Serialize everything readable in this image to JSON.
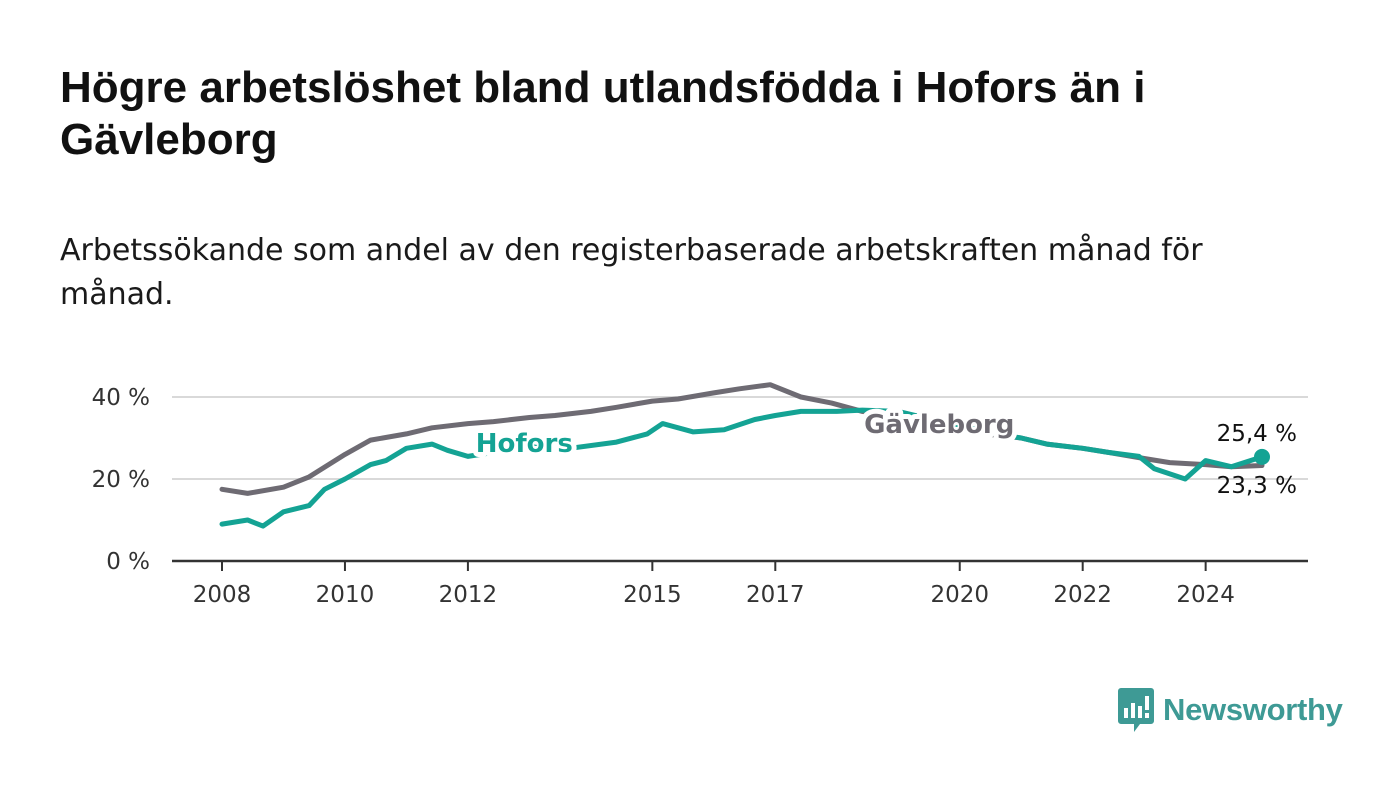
{
  "title": "Högre arbetslöshet bland utlandsfödda i Hofors än i Gävleborg",
  "subtitle": "Arbetssökande som andel av den registerbaserade arbetskraften månad för månad.",
  "brand": {
    "name": "Newsworthy",
    "color": "#3e9a95"
  },
  "colors": {
    "hofors": "#14a394",
    "gavleborg": "#6e6b73",
    "grid": "#d9d9d9",
    "axis": "#333333"
  },
  "chart_data": {
    "type": "line",
    "title": "Högre arbetslöshet bland utlandsfödda i Hofors än i Gävleborg",
    "subtitle": "Arbetssökande som andel av den registerbaserade arbetskraften månad för månad.",
    "xlabel": "",
    "ylabel": "",
    "xlim": [
      "2008-01",
      "2024-12"
    ],
    "ylim": [
      0,
      40
    ],
    "y_ticks": [
      0,
      20,
      40
    ],
    "y_tick_labels": [
      "0 %",
      "20 %",
      "40 %"
    ],
    "x_ticks": [
      "2008-01",
      "2010-01",
      "2012-01",
      "2015-01",
      "2017-01",
      "2020-01",
      "2022-01",
      "2024-01"
    ],
    "x_tick_labels": [
      "2008",
      "2010",
      "2012",
      "2015",
      "2017",
      "2020",
      "2022",
      "2024"
    ],
    "grid": true,
    "series": [
      {
        "name": "Hofors",
        "color": "#14a394",
        "label_position": "2012-12",
        "end_label": "25,4 %",
        "points": [
          [
            "2008-01",
            9.0
          ],
          [
            "2008-06",
            10.0
          ],
          [
            "2008-09",
            8.5
          ],
          [
            "2009-01",
            12.0
          ],
          [
            "2009-06",
            13.5
          ],
          [
            "2009-09",
            17.5
          ],
          [
            "2010-01",
            20.0
          ],
          [
            "2010-06",
            23.5
          ],
          [
            "2010-09",
            24.5
          ],
          [
            "2011-01",
            27.5
          ],
          [
            "2011-06",
            28.5
          ],
          [
            "2011-09",
            27.0
          ],
          [
            "2012-01",
            25.5
          ],
          [
            "2012-06",
            26.5
          ],
          [
            "2013-01",
            28.0
          ],
          [
            "2013-06",
            27.0
          ],
          [
            "2014-06",
            29.0
          ],
          [
            "2014-12",
            31.0
          ],
          [
            "2015-03",
            33.5
          ],
          [
            "2015-09",
            31.5
          ],
          [
            "2016-03",
            32.0
          ],
          [
            "2016-09",
            34.5
          ],
          [
            "2017-01",
            35.5
          ],
          [
            "2017-06",
            36.5
          ],
          [
            "2018-01",
            36.5
          ],
          [
            "2018-06",
            36.8
          ],
          [
            "2019-01",
            36.5
          ],
          [
            "2019-06",
            35.0
          ],
          [
            "2020-01",
            33.0
          ],
          [
            "2020-06",
            31.5
          ],
          [
            "2021-01",
            30.0
          ],
          [
            "2021-06",
            28.5
          ],
          [
            "2022-01",
            27.5
          ],
          [
            "2022-06",
            26.5
          ],
          [
            "2022-12",
            25.5
          ],
          [
            "2023-03",
            22.5
          ],
          [
            "2023-09",
            20.0
          ],
          [
            "2024-01",
            24.5
          ],
          [
            "2024-06",
            23.0
          ],
          [
            "2024-12",
            25.4
          ]
        ]
      },
      {
        "name": "Gävleborg",
        "color": "#6e6b73",
        "label_position": "2019-09",
        "end_label": "23,3 %",
        "points": [
          [
            "2008-01",
            17.5
          ],
          [
            "2008-06",
            16.5
          ],
          [
            "2009-01",
            18.0
          ],
          [
            "2009-06",
            20.5
          ],
          [
            "2010-01",
            26.0
          ],
          [
            "2010-06",
            29.5
          ],
          [
            "2011-01",
            31.0
          ],
          [
            "2011-06",
            32.5
          ],
          [
            "2012-01",
            33.5
          ],
          [
            "2012-06",
            34.0
          ],
          [
            "2013-01",
            35.0
          ],
          [
            "2013-06",
            35.5
          ],
          [
            "2014-01",
            36.5
          ],
          [
            "2014-06",
            37.5
          ],
          [
            "2015-01",
            39.0
          ],
          [
            "2015-06",
            39.5
          ],
          [
            "2016-01",
            41.0
          ],
          [
            "2016-06",
            42.0
          ],
          [
            "2016-12",
            43.0
          ],
          [
            "2017-06",
            40.0
          ],
          [
            "2017-12",
            38.5
          ],
          [
            "2018-06",
            36.5
          ],
          [
            "2019-01",
            35.0
          ],
          [
            "2019-06",
            34.0
          ],
          [
            "2020-01",
            32.0
          ],
          [
            "2020-06",
            31.0
          ],
          [
            "2021-01",
            30.0
          ],
          [
            "2021-06",
            28.5
          ],
          [
            "2022-01",
            27.5
          ],
          [
            "2022-06",
            26.5
          ],
          [
            "2023-01",
            25.0
          ],
          [
            "2023-06",
            24.0
          ],
          [
            "2024-01",
            23.5
          ],
          [
            "2024-06",
            23.0
          ],
          [
            "2024-12",
            23.3
          ]
        ]
      }
    ]
  }
}
